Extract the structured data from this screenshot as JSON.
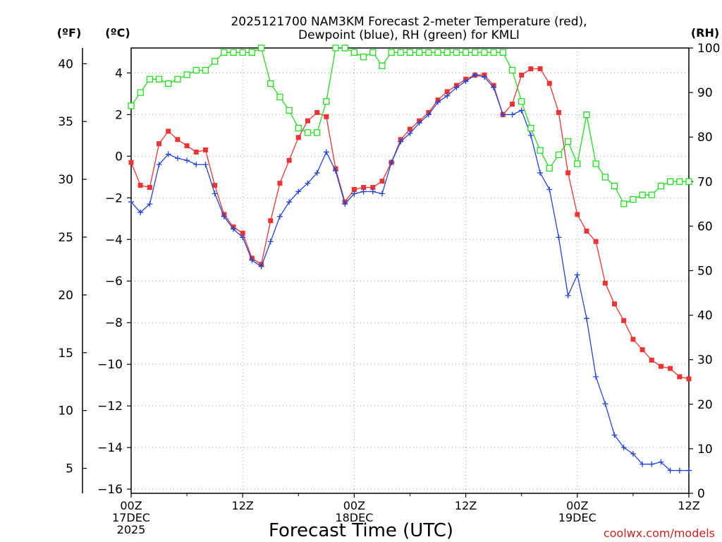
{
  "chart_data": {
    "type": "line",
    "title_line1": "2025121700 NAM3KM Forecast 2-meter Temperature (red),",
    "title_line2": "Dewpoint (blue), RH (green) for KMLI",
    "xlabel": "Forecast Time (UTC)",
    "credit": "coolwx.com/models",
    "unit_f": "(ºF)",
    "unit_c": "(ºC)",
    "unit_rh": "(RH)",
    "x_ticks": [
      {
        "hour": 0,
        "l1": "00Z",
        "l2": "17DEC",
        "l3": "2025"
      },
      {
        "hour": 12,
        "l1": "12Z",
        "l2": "",
        "l3": ""
      },
      {
        "hour": 24,
        "l1": "00Z",
        "l2": "18DEC",
        "l3": ""
      },
      {
        "hour": 36,
        "l1": "12Z",
        "l2": "",
        "l3": ""
      },
      {
        "hour": 48,
        "l1": "00Z",
        "l2": "19DEC",
        "l3": ""
      },
      {
        "hour": 60,
        "l1": "12Z",
        "l2": "",
        "l3": ""
      }
    ],
    "xlim": [
      0,
      60
    ],
    "ylim_c": [
      -16.2,
      5.2
    ],
    "ylim_rh": [
      0,
      100
    ],
    "c_ticks": [
      "−16",
      "−14",
      "−12",
      "−10",
      "−8",
      "−6",
      "−4",
      "−2",
      "0",
      "2",
      "4"
    ],
    "f_ticks": [
      "5",
      "10",
      "15",
      "20",
      "25",
      "30",
      "35",
      "40"
    ],
    "rh_ticks": [
      "0",
      "10",
      "20",
      "30",
      "40",
      "50",
      "60",
      "70",
      "80",
      "90",
      "100"
    ],
    "series": [
      {
        "name": "Temperature",
        "color": "#ee3333",
        "units": "C",
        "marker": "filled-square",
        "hours": [
          0,
          1,
          2,
          3,
          4,
          5,
          6,
          7,
          8,
          9,
          10,
          11,
          12,
          13,
          14,
          15,
          16,
          17,
          18,
          19,
          20,
          21,
          22,
          23,
          24,
          25,
          26,
          27,
          28,
          29,
          30,
          31,
          32,
          33,
          34,
          35,
          36,
          37,
          38,
          39,
          40,
          41,
          42,
          43,
          44,
          45,
          46,
          47,
          48,
          49,
          50,
          51,
          52,
          53,
          54,
          55,
          56,
          57,
          58,
          59,
          60
        ],
        "values": [
          -0.3,
          -1.4,
          -1.5,
          0.6,
          1.2,
          0.8,
          0.5,
          0.2,
          0.3,
          -1.4,
          -2.8,
          -3.4,
          -3.7,
          -4.9,
          -5.2,
          -3.1,
          -1.3,
          -0.2,
          0.9,
          1.7,
          2.1,
          1.9,
          -0.6,
          -2.2,
          -1.6,
          -1.5,
          -1.5,
          -1.2,
          -0.3,
          0.8,
          1.3,
          1.7,
          2.1,
          2.7,
          3.1,
          3.4,
          3.7,
          3.9,
          3.9,
          3.4,
          2.0,
          2.5,
          3.9,
          4.2,
          4.2,
          3.5,
          2.1,
          -0.8,
          -2.8,
          -3.6,
          -4.1,
          -6.1,
          -7.1,
          -7.9,
          -8.8,
          -9.3,
          -9.8,
          -10.1,
          -10.2,
          -10.6,
          -10.7
        ]
      },
      {
        "name": "Dewpoint",
        "color": "#2244dd",
        "units": "C",
        "marker": "plus",
        "hours": [
          0,
          1,
          2,
          3,
          4,
          5,
          6,
          7,
          8,
          9,
          10,
          11,
          12,
          13,
          14,
          15,
          16,
          17,
          18,
          19,
          20,
          21,
          22,
          23,
          24,
          25,
          26,
          27,
          28,
          29,
          30,
          31,
          32,
          33,
          34,
          35,
          36,
          37,
          38,
          39,
          40,
          41,
          42,
          43,
          44,
          45,
          46,
          47,
          48,
          49,
          50,
          51,
          52,
          53,
          54,
          55,
          56,
          57,
          58,
          59,
          60
        ],
        "values": [
          -2.2,
          -2.7,
          -2.3,
          -0.4,
          0.1,
          -0.1,
          -0.2,
          -0.4,
          -0.4,
          -1.8,
          -2.9,
          -3.5,
          -3.9,
          -5.0,
          -5.3,
          -4.1,
          -2.9,
          -2.2,
          -1.7,
          -1.3,
          -0.8,
          0.2,
          -0.7,
          -2.3,
          -1.8,
          -1.7,
          -1.7,
          -1.8,
          -0.3,
          0.7,
          1.1,
          1.6,
          2.0,
          2.6,
          2.9,
          3.3,
          3.6,
          3.9,
          3.8,
          3.3,
          2.0,
          2.0,
          2.2,
          1.0,
          -0.8,
          -1.6,
          -3.9,
          -6.7,
          -5.7,
          -7.8,
          -10.6,
          -11.9,
          -13.4,
          -14.0,
          -14.3,
          -14.8,
          -14.8,
          -14.7,
          -15.1,
          -15.1,
          -15.1
        ]
      },
      {
        "name": "RH",
        "color": "#22dd22",
        "units": "%",
        "marker": "open-square",
        "hours": [
          0,
          1,
          2,
          3,
          4,
          5,
          6,
          7,
          8,
          9,
          10,
          11,
          12,
          13,
          14,
          15,
          16,
          17,
          18,
          19,
          20,
          21,
          22,
          23,
          24,
          25,
          26,
          27,
          28,
          29,
          30,
          31,
          32,
          33,
          34,
          35,
          36,
          37,
          38,
          39,
          40,
          41,
          42,
          43,
          44,
          45,
          46,
          47,
          48,
          49,
          50,
          51,
          52,
          53,
          54,
          55,
          56,
          57,
          58,
          59,
          60
        ],
        "values": [
          87,
          90,
          93,
          93,
          92,
          93,
          94,
          95,
          95,
          97,
          99,
          99,
          99,
          99,
          100,
          92,
          89,
          86,
          82,
          81,
          81,
          88,
          100,
          100,
          99,
          98,
          99,
          96,
          99,
          99,
          99,
          99,
          99,
          99,
          99,
          99,
          99,
          99,
          99,
          99,
          99,
          95,
          88,
          82,
          77,
          73,
          76,
          79,
          74,
          85,
          74,
          71,
          69,
          65,
          66,
          67,
          67,
          69,
          70,
          70,
          70
        ]
      }
    ]
  }
}
